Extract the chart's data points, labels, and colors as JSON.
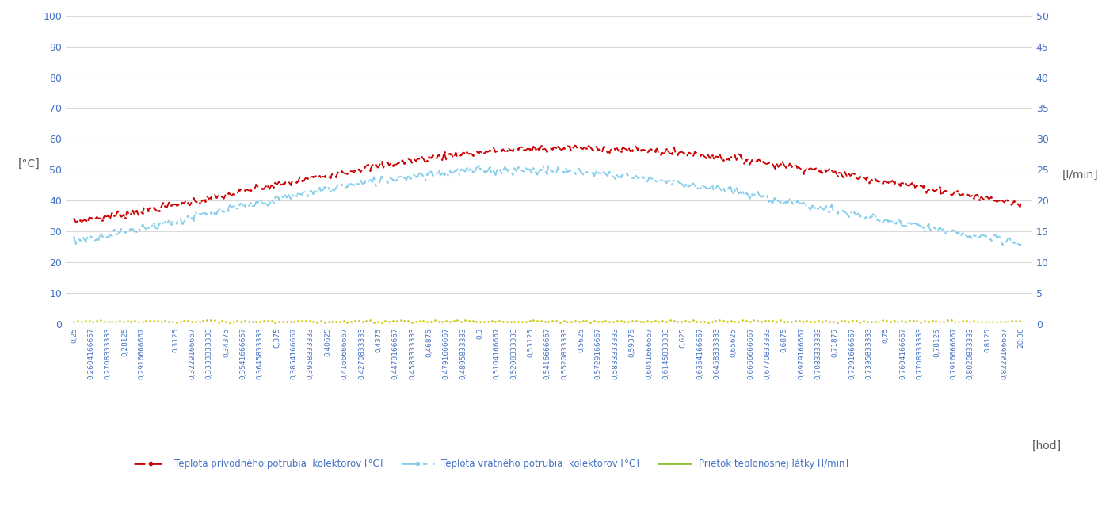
{
  "title": "",
  "ylabel_left": "[°C]",
  "ylabel_right": "[l/min]",
  "xlabel_right": "[hod]",
  "ylim_left": [
    0,
    100
  ],
  "ylim_right": [
    0,
    50
  ],
  "yticks_left": [
    0,
    10,
    20,
    30,
    40,
    50,
    60,
    70,
    80,
    90,
    100
  ],
  "yticks_right": [
    0,
    5,
    10,
    15,
    20,
    25,
    30,
    35,
    40,
    45,
    50
  ],
  "background_color": "#ffffff",
  "grid_color": "#d9d9d9",
  "legend_entries": [
    "Teplota prívodného potrubia  kolektorov [°C]",
    "Teplota vratného potrubia  kolektorov [°C]",
    "Prietok teplonosnej látky [l/min]"
  ],
  "supply_color": "#cc0000",
  "return_color": "#87ceeb",
  "flow_color": "#c8c800",
  "text_color": "#4472c4",
  "axis_label_color": "#595959",
  "x_tick_values": [
    0.25,
    0.2604167,
    0.2708333,
    0.28125,
    0.2916667,
    0.3125,
    0.3229167,
    0.3333333,
    0.34375,
    0.3541667,
    0.3645833,
    0.375,
    0.3854167,
    0.3958333,
    0.40625,
    0.4166667,
    0.4270833,
    0.4375,
    0.4479167,
    0.4583333,
    0.46875,
    0.4791667,
    0.4895833,
    0.5,
    0.5104167,
    0.5208333,
    0.53125,
    0.5416667,
    0.5520833,
    0.5625,
    0.5729167,
    0.5833333,
    0.59375,
    0.6041667,
    0.6145833,
    0.625,
    0.6354167,
    0.6458333,
    0.65625,
    0.6666667,
    0.6770833,
    0.6875,
    0.6979167,
    0.7083333,
    0.71875,
    0.7291667,
    0.7395833,
    0.75,
    0.7604167,
    0.7708333,
    0.78125,
    0.7916667,
    0.8020833,
    0.8125,
    0.8229167,
    0.8333333
  ],
  "x_tick_labels": [
    "0,25",
    "0,2604166667",
    "0,2708333333",
    "0,28125",
    "0,2916666667",
    "0,3125",
    "0,3229166667",
    "0,3333333333",
    "0,34375",
    "0,3541666667",
    "0,3645833333",
    "0,375",
    "0,3854166667",
    "0,3958333333",
    "0,40625",
    "0,4166666667",
    "0,4270833333",
    "0,4375",
    "0,4479166667",
    "0,4583333333",
    "0,46875",
    "0,4791666667",
    "0,4895833333",
    "0,5",
    "0,5104166667",
    "0,5208333333",
    "0,53125",
    "0,5416666667",
    "0,5520833333",
    "0,5625",
    "0,5729166667",
    "0,5833333333",
    "0,59375",
    "0,6041666667",
    "0,6145833333",
    "0,625",
    "0,6354166667",
    "0,6458333333",
    "0,65625",
    "0,6666666667",
    "0,6770833333",
    "0,6875",
    "0,6979166667",
    "0,7083333333",
    "0,71875",
    "0,7291666667",
    "0,7395833333",
    "0,75",
    "0,7604166667",
    "0,7708333333",
    "0,78125",
    "0,7916666667",
    "0,8020833333",
    "0,8125",
    "0,8229166667",
    "20:00"
  ]
}
